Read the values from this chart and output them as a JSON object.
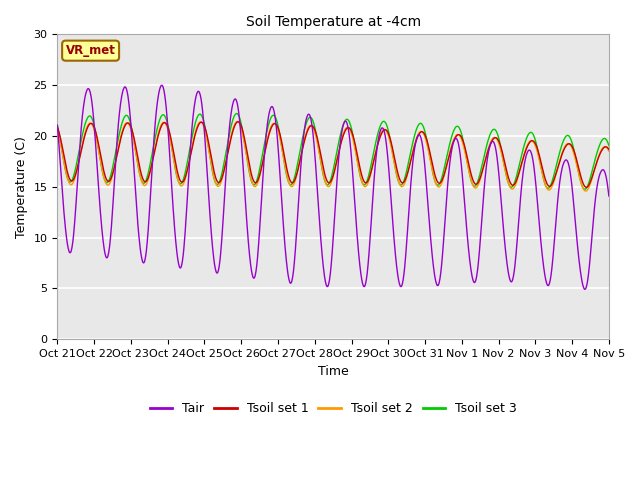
{
  "title": "Soil Temperature at -4cm",
  "xlabel": "Time",
  "ylabel": "Temperature (C)",
  "ylim": [
    0,
    30
  ],
  "xlim": [
    0,
    15
  ],
  "fig_bg": "#ffffff",
  "plot_bg": "#e8e8e8",
  "tick_labels": [
    "Oct 21",
    "Oct 22",
    "Oct 23",
    "Oct 24",
    "Oct 25",
    "Oct 26",
    "Oct 27",
    "Oct 28",
    "Oct 29",
    "Oct 30",
    "Oct 31",
    "Nov 1",
    "Nov 2",
    "Nov 3",
    "Nov 4",
    "Nov 5"
  ],
  "series_colors": [
    "#9900cc",
    "#cc0000",
    "#ff9900",
    "#00cc00"
  ],
  "series_labels": [
    "Tair",
    "Tsoil set 1",
    "Tsoil set 2",
    "Tsoil set 3"
  ],
  "annotation_text": "VR_met",
  "annotation_bg": "#ffff99",
  "annotation_border": "#996600",
  "annotation_text_color": "#990000",
  "title_fontsize": 10,
  "axis_fontsize": 9,
  "tick_fontsize": 8
}
